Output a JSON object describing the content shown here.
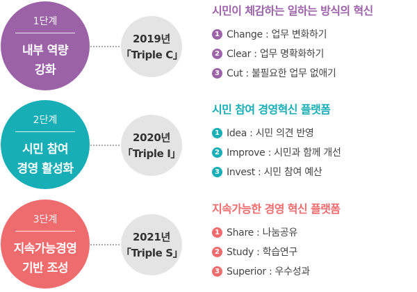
{
  "colors": {
    "stage1": "#9b62a8",
    "stage2": "#17aeb5",
    "stage3": "#ee6b6e",
    "year_circle": "#e4e4e4",
    "connector": "#a9a9a9"
  },
  "stages": [
    {
      "step": "1단계",
      "title_line1": "내부 역량",
      "title_line2": "강화",
      "year": "2019년",
      "code": "「Triple C」",
      "heading": "시민이 체감하는 일하는 방식의 혁신",
      "items": [
        {
          "num": "1",
          "text": "Change : 업무 변화하기"
        },
        {
          "num": "2",
          "text": "Clear : 업무 명확화하기"
        },
        {
          "num": "3",
          "text": "Cut : 불필요한 업무 없애기"
        }
      ]
    },
    {
      "step": "2단계",
      "title_line1": "시민 참여",
      "title_line2": "경영 활성화",
      "year": "2020년",
      "code": "「Triple I」",
      "heading": "시민 참여 경영혁신 플랫폼",
      "items": [
        {
          "num": "1",
          "text": "Idea : 시민 의견 반영"
        },
        {
          "num": "2",
          "text": "Improve : 시민과 함께 개선"
        },
        {
          "num": "3",
          "text": "Invest : 시민 참여 예산"
        }
      ]
    },
    {
      "step": "3단계",
      "title_line1": "지속가능경영",
      "title_line2": "기반 조성",
      "year": "2021년",
      "code": "「Triple S」",
      "heading": "지속가능한 경영 혁신 플랫폼",
      "items": [
        {
          "num": "1",
          "text": "Share : 나눔공유"
        },
        {
          "num": "2",
          "text": "Study : 학습연구"
        },
        {
          "num": "3",
          "text": "Superior : 우수성과"
        }
      ]
    }
  ]
}
